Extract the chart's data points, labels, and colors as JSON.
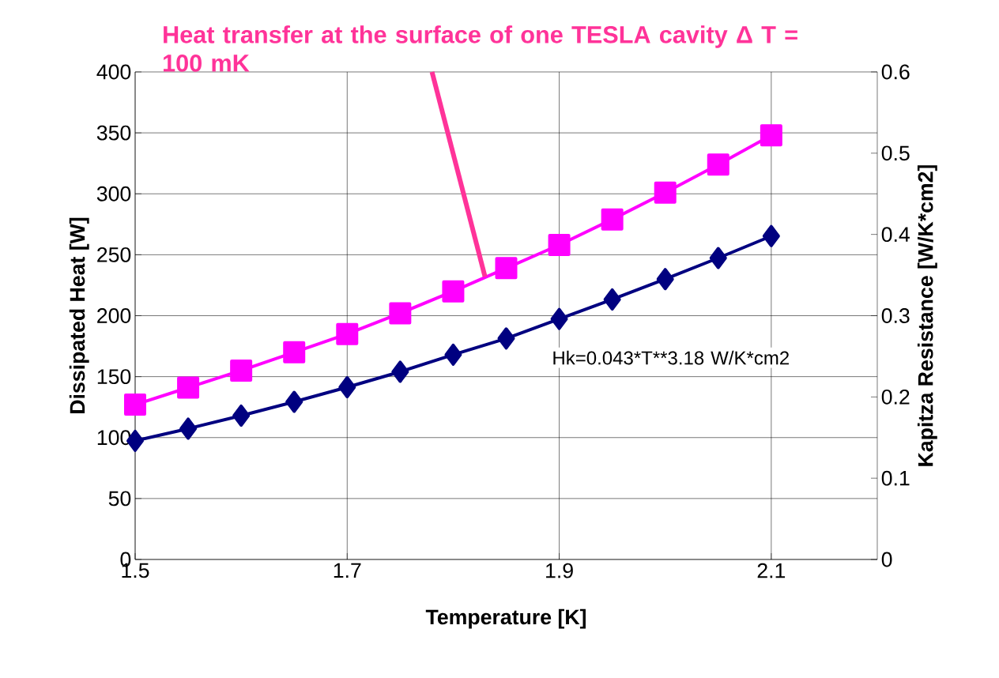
{
  "chart_data": {
    "type": "line",
    "xlabel": "Temperature [K]",
    "ylabel": "Dissipated Heat [W]",
    "y2label": "Kapitza Resistance [W/K*cm2]",
    "x": [
      1.5,
      1.55,
      1.6,
      1.65,
      1.7,
      1.75,
      1.8,
      1.85,
      1.9,
      1.95,
      2.0,
      2.05,
      2.1
    ],
    "series": [
      {
        "color": "#ff00ff",
        "marker": "square",
        "values": [
          127,
          141,
          155,
          170,
          185,
          202,
          220,
          239,
          258,
          279,
          301,
          324,
          348
        ]
      },
      {
        "color": "#000080",
        "marker": "diamond",
        "axis": "y2",
        "values": [
          0.146,
          0.161,
          0.177,
          0.194,
          0.212,
          0.231,
          0.252,
          0.272,
          0.296,
          0.32,
          0.345,
          0.371,
          0.398
        ]
      }
    ],
    "xlim": [
      1.5,
      2.2
    ],
    "xticks": [
      1.5,
      1.7,
      1.9,
      2.1
    ],
    "ylim": [
      0,
      400
    ],
    "yticks": [
      0,
      50,
      100,
      150,
      200,
      250,
      300,
      350,
      400
    ],
    "y2lim": [
      0,
      0.6
    ],
    "y2ticks": [
      0,
      0.1,
      0.2,
      0.3,
      0.4,
      0.5,
      0.6
    ],
    "grid": true,
    "line_style": "solid",
    "annotations": [
      {
        "text": "Heat transfer at  the surface of one TESLA cavity    Δ T = 100 mK",
        "x": 1.83,
        "y": 232
      },
      "Hk=0.043*T**3.18 W/K*cm2"
    ]
  }
}
